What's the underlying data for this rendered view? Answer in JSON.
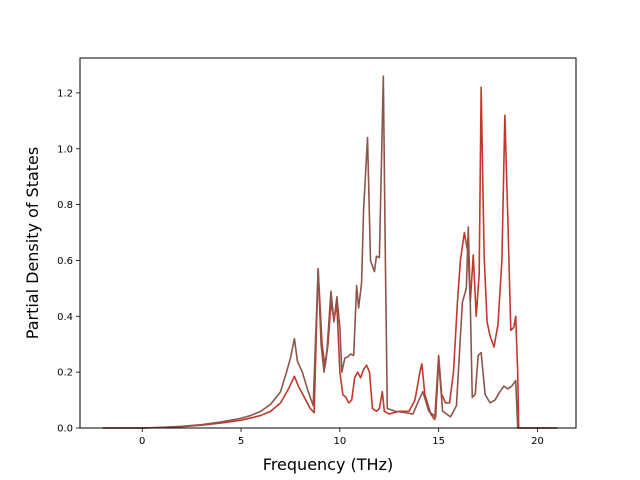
{
  "chart_data": {
    "type": "line",
    "title": "",
    "xlabel": "Frequency (THz)",
    "ylabel": "Partial Density of States",
    "xlim": [
      -3.15,
      21.95
    ],
    "ylim": [
      0,
      1.325
    ],
    "xticks": [
      "0",
      "5",
      "10",
      "15",
      "20"
    ],
    "xtick_values": [
      0,
      5,
      10,
      15,
      20
    ],
    "yticks": [
      "0.0",
      "0.2",
      "0.4",
      "0.6",
      "0.8",
      "1.0",
      "1.2"
    ],
    "ytick_values": [
      0,
      0.2,
      0.4,
      0.6,
      0.8,
      1.0,
      1.2
    ],
    "grid": false,
    "series": [
      {
        "color": "#c0392b",
        "points": [
          [
            -2,
            0
          ],
          [
            0,
            0
          ],
          [
            1,
            0.002
          ],
          [
            2,
            0.005
          ],
          [
            3,
            0.01
          ],
          [
            4,
            0.018
          ],
          [
            5,
            0.028
          ],
          [
            5.5,
            0.036
          ],
          [
            6,
            0.045
          ],
          [
            6.5,
            0.06
          ],
          [
            7,
            0.09
          ],
          [
            7.4,
            0.14
          ],
          [
            7.7,
            0.185
          ],
          [
            7.9,
            0.15
          ],
          [
            8.2,
            0.11
          ],
          [
            8.5,
            0.07
          ],
          [
            8.7,
            0.055
          ],
          [
            8.9,
            0.57
          ],
          [
            9.1,
            0.3
          ],
          [
            9.25,
            0.22
          ],
          [
            9.4,
            0.3
          ],
          [
            9.55,
            0.45
          ],
          [
            9.7,
            0.39
          ],
          [
            9.85,
            0.44
          ],
          [
            10,
            0.2
          ],
          [
            10.15,
            0.12
          ],
          [
            10.3,
            0.11
          ],
          [
            10.45,
            0.09
          ],
          [
            10.6,
            0.1
          ],
          [
            10.75,
            0.18
          ],
          [
            10.9,
            0.2
          ],
          [
            11.05,
            0.18
          ],
          [
            11.2,
            0.21
          ],
          [
            11.35,
            0.225
          ],
          [
            11.5,
            0.2
          ],
          [
            11.65,
            0.07
          ],
          [
            11.85,
            0.06
          ],
          [
            12,
            0.07
          ],
          [
            12.15,
            0.13
          ],
          [
            12.25,
            0.06
          ],
          [
            12.5,
            0.05
          ],
          [
            13,
            0.06
          ],
          [
            13.5,
            0.06
          ],
          [
            13.8,
            0.1
          ],
          [
            14.05,
            0.2
          ],
          [
            14.15,
            0.23
          ],
          [
            14.3,
            0.12
          ],
          [
            14.6,
            0.05
          ],
          [
            14.8,
            0.03
          ],
          [
            15,
            0.26
          ],
          [
            15.15,
            0.12
          ],
          [
            15.35,
            0.09
          ],
          [
            15.55,
            0.09
          ],
          [
            15.75,
            0.2
          ],
          [
            15.95,
            0.45
          ],
          [
            16.1,
            0.6
          ],
          [
            16.3,
            0.7
          ],
          [
            16.5,
            0.62
          ],
          [
            16.6,
            0.45
          ],
          [
            16.75,
            0.62
          ],
          [
            16.9,
            0.4
          ],
          [
            17.05,
            0.55
          ],
          [
            17.15,
            1.22
          ],
          [
            17.3,
            0.62
          ],
          [
            17.45,
            0.38
          ],
          [
            17.6,
            0.33
          ],
          [
            17.8,
            0.29
          ],
          [
            18,
            0.37
          ],
          [
            18.2,
            0.6
          ],
          [
            18.35,
            1.12
          ],
          [
            18.5,
            0.75
          ],
          [
            18.65,
            0.35
          ],
          [
            18.8,
            0.36
          ],
          [
            18.9,
            0.4
          ],
          [
            19.0,
            0.2
          ],
          [
            19.05,
            0
          ],
          [
            21,
            0
          ]
        ]
      },
      {
        "color": "#8c564b",
        "points": [
          [
            -2,
            0
          ],
          [
            0,
            0
          ],
          [
            1,
            0.002
          ],
          [
            2,
            0.006
          ],
          [
            3,
            0.012
          ],
          [
            4,
            0.022
          ],
          [
            5,
            0.035
          ],
          [
            5.5,
            0.045
          ],
          [
            6,
            0.06
          ],
          [
            6.5,
            0.085
          ],
          [
            7,
            0.13
          ],
          [
            7.3,
            0.2
          ],
          [
            7.5,
            0.25
          ],
          [
            7.7,
            0.32
          ],
          [
            7.85,
            0.24
          ],
          [
            8.1,
            0.2
          ],
          [
            8.4,
            0.13
          ],
          [
            8.65,
            0.08
          ],
          [
            8.9,
            0.57
          ],
          [
            9.05,
            0.3
          ],
          [
            9.2,
            0.2
          ],
          [
            9.35,
            0.28
          ],
          [
            9.55,
            0.49
          ],
          [
            9.7,
            0.38
          ],
          [
            9.85,
            0.47
          ],
          [
            10,
            0.36
          ],
          [
            10.1,
            0.2
          ],
          [
            10.25,
            0.25
          ],
          [
            10.4,
            0.255
          ],
          [
            10.55,
            0.265
          ],
          [
            10.7,
            0.26
          ],
          [
            10.85,
            0.51
          ],
          [
            10.95,
            0.43
          ],
          [
            11.1,
            0.52
          ],
          [
            11.2,
            0.78
          ],
          [
            11.4,
            1.04
          ],
          [
            11.55,
            0.6
          ],
          [
            11.75,
            0.56
          ],
          [
            11.85,
            0.615
          ],
          [
            12.0,
            0.61
          ],
          [
            12.2,
            1.26
          ],
          [
            12.3,
            0.62
          ],
          [
            12.4,
            0.07
          ],
          [
            12.8,
            0.06
          ],
          [
            13.3,
            0.055
          ],
          [
            13.7,
            0.05
          ],
          [
            14.0,
            0.1
          ],
          [
            14.2,
            0.13
          ],
          [
            14.5,
            0.06
          ],
          [
            14.85,
            0.04
          ],
          [
            15.0,
            0.24
          ],
          [
            15.2,
            0.06
          ],
          [
            15.6,
            0.04
          ],
          [
            15.9,
            0.08
          ],
          [
            16.2,
            0.45
          ],
          [
            16.4,
            0.5
          ],
          [
            16.5,
            0.72
          ],
          [
            16.6,
            0.45
          ],
          [
            16.7,
            0.11
          ],
          [
            16.85,
            0.12
          ],
          [
            17.0,
            0.26
          ],
          [
            17.15,
            0.27
          ],
          [
            17.35,
            0.12
          ],
          [
            17.6,
            0.09
          ],
          [
            17.85,
            0.1
          ],
          [
            18.1,
            0.13
          ],
          [
            18.3,
            0.15
          ],
          [
            18.5,
            0.14
          ],
          [
            18.7,
            0.15
          ],
          [
            18.9,
            0.17
          ],
          [
            19.0,
            0
          ],
          [
            21,
            0
          ]
        ]
      }
    ]
  }
}
